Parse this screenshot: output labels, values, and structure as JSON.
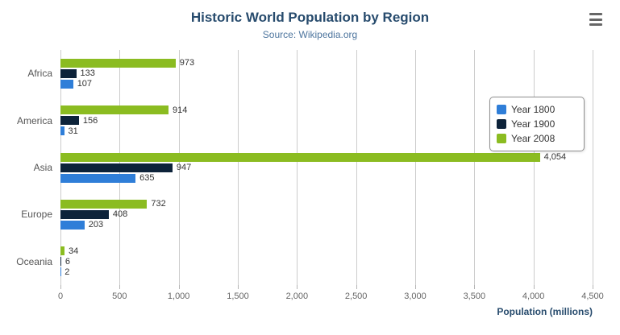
{
  "header": {
    "title": "Historic World Population by Region",
    "subtitle": "Source: Wikipedia.org"
  },
  "colors": {
    "title": "#274b6d",
    "subtitle": "#4d759e",
    "axis_title": "#274b6d",
    "grid": "#cccccc",
    "data_label": "#333333",
    "tick_label": "#666666",
    "category_label": "#555555",
    "legend_border": "#909090"
  },
  "chart_data": {
    "type": "bar",
    "title": "Historic World Population by Region",
    "subtitle": "Source: Wikipedia.org",
    "categories": [
      "Africa",
      "America",
      "Asia",
      "Europe",
      "Oceania"
    ],
    "series": [
      {
        "name": "Year 1800",
        "color": "#2f7ed8",
        "values": [
          107,
          31,
          635,
          203,
          2
        ]
      },
      {
        "name": "Year 1900",
        "color": "#0d233a",
        "values": [
          133,
          156,
          947,
          408,
          6
        ]
      },
      {
        "name": "Year 2008",
        "color": "#8bbc21",
        "values": [
          973,
          914,
          4054,
          732,
          34
        ]
      }
    ],
    "bar_order_top_to_bottom": [
      "Year 2008",
      "Year 1900",
      "Year 1800"
    ],
    "xlabel": "Population (millions)",
    "xlim": [
      0,
      4500
    ],
    "xticks": [
      0,
      500,
      1000,
      1500,
      2000,
      2500,
      3000,
      3500,
      4000,
      4500
    ],
    "grid": true,
    "legend_position": "right-floating"
  }
}
